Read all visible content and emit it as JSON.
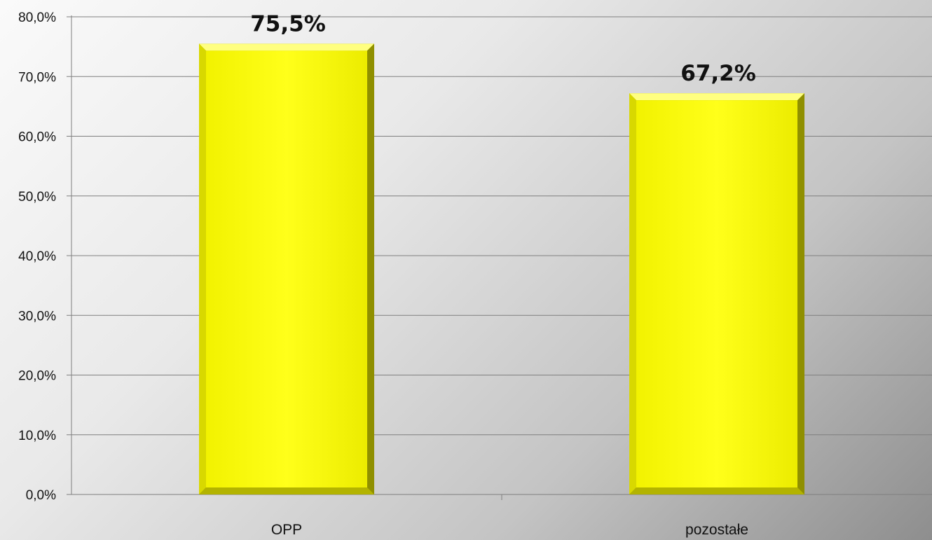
{
  "chart_data": {
    "type": "bar",
    "categories": [
      "OPP",
      "pozostałe"
    ],
    "values": [
      75.5,
      67.2
    ],
    "data_labels": [
      "75,5%",
      "67,2%"
    ],
    "y_ticks": [
      "0,0%",
      "10,0%",
      "20,0%",
      "30,0%",
      "40,0%",
      "50,0%",
      "60,0%",
      "70,0%",
      "80,0%"
    ],
    "y_tick_values": [
      0,
      10,
      20,
      30,
      40,
      50,
      60,
      70,
      80
    ],
    "ylim": [
      0,
      80
    ],
    "title": "",
    "xlabel": "",
    "ylabel": "",
    "grid": true,
    "legend": "none",
    "colors": {
      "bar_face": "#ffff00",
      "bar_shade": "#9a9a00",
      "gridline": "#7f7f7f",
      "text": "#111111"
    }
  }
}
